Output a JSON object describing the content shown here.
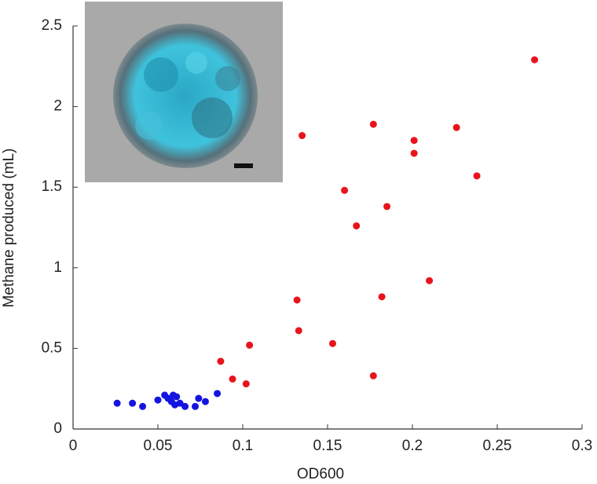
{
  "chart_data": {
    "type": "scatter",
    "x_label": "OD600",
    "y_label": "Methane produced (mL)",
    "xlim": [
      0,
      0.3
    ],
    "xticks": [
      0,
      0.05,
      0.1,
      0.15,
      0.2,
      0.25,
      0.3
    ],
    "ylim": [
      0,
      2.5
    ],
    "yticks": [
      0,
      0.5,
      1,
      1.5,
      2,
      2.5
    ],
    "series": [
      {
        "color": "#e8141c",
        "x": [
          0.272,
          0.135,
          0.177,
          0.226,
          0.201,
          0.201,
          0.238,
          0.16,
          0.185,
          0.167,
          0.21,
          0.182,
          0.132,
          0.133,
          0.104,
          0.153,
          0.087,
          0.094,
          0.102,
          0.177
        ],
        "values": [
          2.29,
          1.82,
          1.89,
          1.87,
          1.79,
          1.71,
          1.57,
          1.48,
          1.38,
          1.26,
          0.92,
          0.82,
          0.8,
          0.61,
          0.52,
          0.53,
          0.42,
          0.31,
          0.28,
          0.33
        ]
      },
      {
        "color": "#1414e0",
        "x": [
          0.026,
          0.035,
          0.041,
          0.05,
          0.054,
          0.056,
          0.059,
          0.058,
          0.061,
          0.063,
          0.066,
          0.072,
          0.074,
          0.078,
          0.085,
          0.06
        ],
        "values": [
          0.16,
          0.16,
          0.14,
          0.18,
          0.21,
          0.19,
          0.21,
          0.17,
          0.2,
          0.16,
          0.14,
          0.14,
          0.19,
          0.17,
          0.22,
          0.15
        ]
      }
    ]
  }
}
